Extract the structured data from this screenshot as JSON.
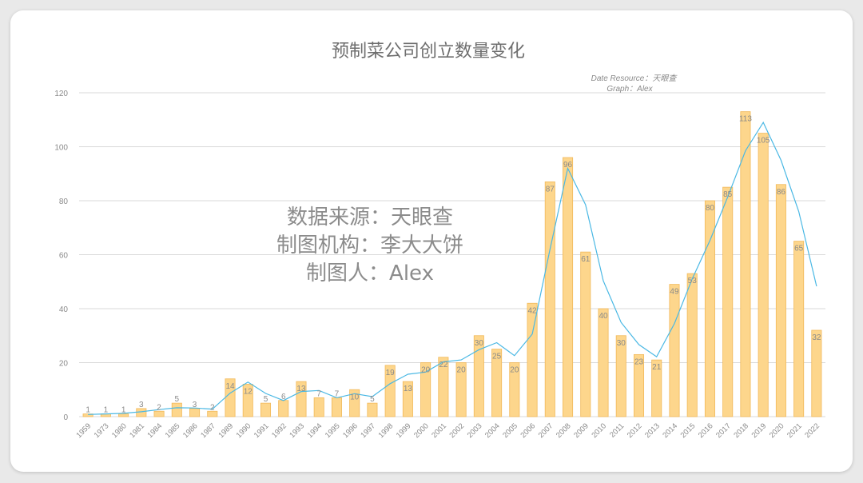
{
  "chart_data": {
    "type": "bar",
    "title": "预制菜公司创立数量变化",
    "source_line": "Date Resource：天眼查",
    "graph_line": "Graph：Alex",
    "watermark": [
      "数据来源：天眼查",
      "制图机构：李大大饼",
      "制图人：Alex"
    ],
    "xlabel": "",
    "ylabel": "",
    "ylim": [
      0,
      120
    ],
    "yticks": [
      0,
      20,
      40,
      60,
      80,
      100,
      120
    ],
    "grid": true,
    "legend": "none",
    "categories": [
      "1959",
      "1973",
      "1980",
      "1981",
      "1984",
      "1985",
      "1986",
      "1987",
      "1989",
      "1990",
      "1991",
      "1992",
      "1993",
      "1994",
      "1995",
      "1996",
      "1997",
      "1998",
      "1999",
      "2000",
      "2001",
      "2002",
      "2003",
      "2004",
      "2005",
      "2006",
      "2007",
      "2008",
      "2009",
      "2010",
      "2011",
      "2012",
      "2013",
      "2014",
      "2015",
      "2016",
      "2017",
      "2018",
      "2019",
      "2020",
      "2021",
      "2022"
    ],
    "values": [
      1,
      1,
      1,
      3,
      2,
      5,
      3,
      2,
      14,
      12,
      5,
      6,
      13,
      7,
      7,
      10,
      5,
      19,
      13,
      20,
      22,
      20,
      30,
      25,
      20,
      42,
      87,
      96,
      61,
      40,
      30,
      23,
      21,
      49,
      53,
      80,
      85,
      113,
      105,
      86,
      65,
      32
    ],
    "trend_line": [
      0.8,
      1,
      1.2,
      1.8,
      2.6,
      3.3,
      3.2,
      2.8,
      8.7,
      12.8,
      8.6,
      6,
      9.3,
      9.7,
      7,
      8.5,
      7.4,
      12.2,
      15.7,
      16.5,
      20.3,
      21,
      24.8,
      27.4,
      22.6,
      30.6,
      62,
      92,
      78.5,
      50.3,
      34.9,
      26.7,
      22.2,
      34.5,
      51,
      65.3,
      81.4,
      98.5,
      109,
      95,
      76,
      48.3
    ],
    "colors": {
      "bar_fill": "#fdd68c",
      "bar_stroke": "#f1b95a",
      "trend": "#4ab8e4",
      "grid": "#d9d9d9",
      "tick_text": "#8a8a8a",
      "label_text": "#8a8a8a",
      "title_text": "#6e6e6e",
      "watermark_text": "#8c8c8c"
    }
  }
}
